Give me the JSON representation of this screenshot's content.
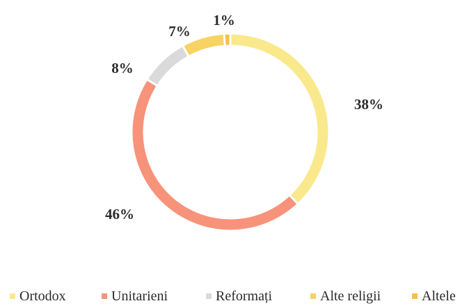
{
  "chart_data": {
    "type": "pie",
    "donut": true,
    "title": "",
    "categories": [
      "Ortodox",
      "Unitarieni",
      "Reformați",
      "Alte religii",
      "Altele"
    ],
    "values": [
      38,
      46,
      8,
      7,
      1
    ],
    "data_labels": [
      "38%",
      "46%",
      "8%",
      "7%",
      "1%"
    ],
    "colors": [
      "#FAE98C",
      "#F7937A",
      "#DADADA",
      "#F8D263",
      "#F5C244"
    ],
    "legend_position": "bottom"
  }
}
